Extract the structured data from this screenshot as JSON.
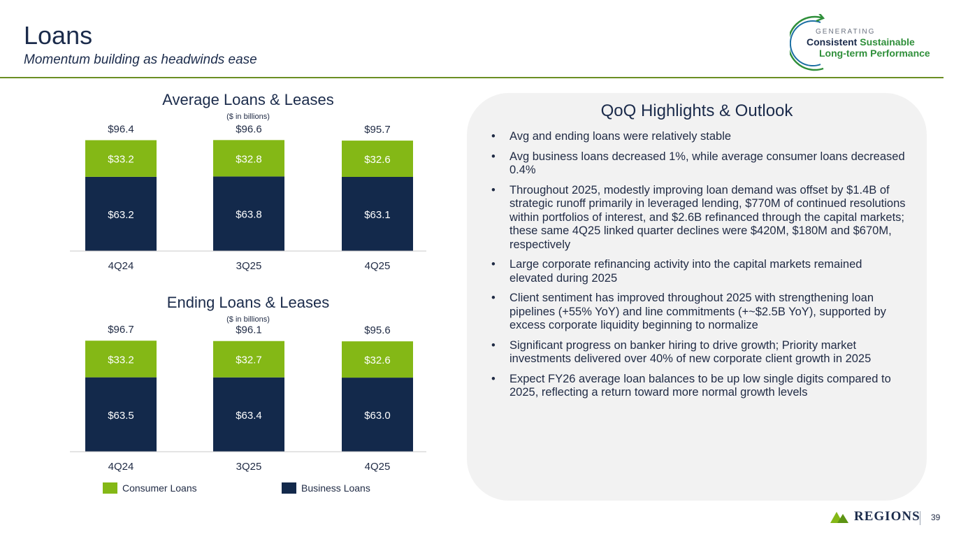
{
  "header": {
    "title": "Loans",
    "subtitle": "Momentum building as headwinds ease"
  },
  "logo": {
    "line0": "GENERATING",
    "line1a": "Consistent",
    "line1b": "Sustainable",
    "line2": "Long-term Performance"
  },
  "colors": {
    "consumer": "#84b816",
    "business": "#13294b",
    "accent": "#6b8e23"
  },
  "chart_data": [
    {
      "type": "bar",
      "stacked": true,
      "title": "Average Loans & Leases",
      "subtitle": "($ in billions)",
      "categories": [
        "4Q24",
        "3Q25",
        "4Q25"
      ],
      "totals": [
        "$96.4",
        "$96.6",
        "$95.7"
      ],
      "series": [
        {
          "name": "Business Loans",
          "values": [
            63.2,
            63.8,
            63.1
          ],
          "labels": [
            "$63.2",
            "$63.8",
            "$63.1"
          ]
        },
        {
          "name": "Consumer Loans",
          "values": [
            33.2,
            32.8,
            32.6
          ],
          "labels": [
            "$33.2",
            "$32.8",
            "$32.6"
          ]
        }
      ]
    },
    {
      "type": "bar",
      "stacked": true,
      "title": "Ending Loans & Leases",
      "subtitle": "($ in billions)",
      "categories": [
        "4Q24",
        "3Q25",
        "4Q25"
      ],
      "totals": [
        "$96.7",
        "$96.1",
        "$95.6"
      ],
      "series": [
        {
          "name": "Business Loans",
          "values": [
            63.5,
            63.4,
            63.0
          ],
          "labels": [
            "$63.5",
            "$63.4",
            "$63.0"
          ]
        },
        {
          "name": "Consumer Loans",
          "values": [
            33.2,
            32.7,
            32.6
          ],
          "labels": [
            "$33.2",
            "$32.7",
            "$32.6"
          ]
        }
      ]
    }
  ],
  "legend": {
    "consumer": "Consumer Loans",
    "business": "Business Loans"
  },
  "highlights": {
    "title": "QoQ Highlights & Outlook",
    "bullets": [
      "Avg and ending loans were relatively stable",
      "Avg business loans decreased 1%, while average consumer loans decreased 0.4%",
      "Throughout 2025, modestly improving loan demand was offset by $1.4B of strategic runoff primarily in leveraged lending, $770M of continued resolutions within portfolios of interest, and $2.6B refinanced through the capital markets; these same 4Q25 linked quarter declines were $420M, $180M and $670M, respectively",
      "Large corporate refinancing activity into the capital markets remained elevated during 2025",
      "Client sentiment has improved throughout 2025 with strengthening loan pipelines (+55% YoY) and line commitments (+~$2.5B YoY), supported by excess corporate liquidity beginning to normalize",
      "Significant progress on banker hiring to drive growth; Priority market investments delivered over 40% of new corporate client growth in 2025",
      "Expect FY26 average loan balances to be up low single digits compared to 2025, reflecting a return toward more normal growth levels"
    ]
  },
  "footer": {
    "brand": "REGIONS",
    "page": "39"
  }
}
